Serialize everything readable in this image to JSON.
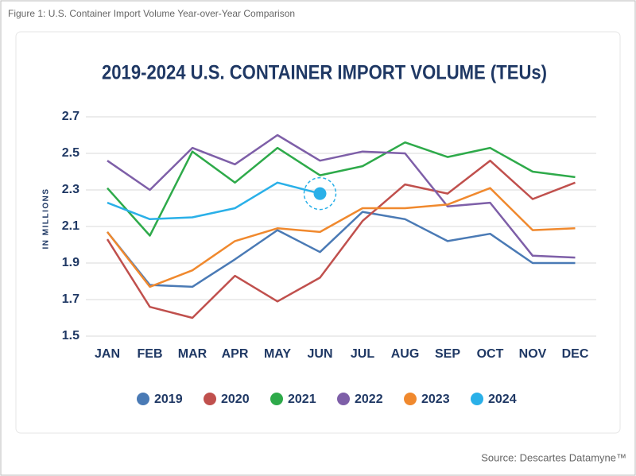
{
  "chart_data": {
    "type": "line",
    "caption": "Figure 1: U.S. Container Import Volume Year-over-Year Comparison",
    "title": "2019-2024 U.S. CONTAINER IMPORT VOLUME (TEUs)",
    "y_label": "IN MILLIONS",
    "source": "Source: Descartes Datamyne™",
    "categories": [
      "JAN",
      "FEB",
      "MAR",
      "APR",
      "MAY",
      "JUN",
      "JUL",
      "AUG",
      "SEP",
      "OCT",
      "NOV",
      "DEC"
    ],
    "series": [
      {
        "name": "2019",
        "color": "#4a7ab5",
        "values": [
          2.07,
          1.78,
          1.77,
          1.92,
          2.08,
          1.96,
          2.18,
          2.14,
          2.02,
          2.06,
          1.9,
          1.9
        ]
      },
      {
        "name": "2020",
        "color": "#c0504d",
        "values": [
          2.03,
          1.66,
          1.6,
          1.83,
          1.69,
          1.82,
          2.13,
          2.33,
          2.28,
          2.46,
          2.25,
          2.34
        ]
      },
      {
        "name": "2021",
        "color": "#2eaa4a",
        "values": [
          2.31,
          2.05,
          2.51,
          2.34,
          2.53,
          2.38,
          2.43,
          2.56,
          2.48,
          2.53,
          2.4,
          2.37
        ]
      },
      {
        "name": "2022",
        "color": "#7e5fa8",
        "values": [
          2.46,
          2.3,
          2.53,
          2.44,
          2.6,
          2.46,
          2.51,
          2.5,
          2.21,
          2.23,
          1.94,
          1.93
        ]
      },
      {
        "name": "2023",
        "color": "#f0892e",
        "values": [
          2.07,
          1.77,
          1.86,
          2.02,
          2.09,
          2.07,
          2.2,
          2.2,
          2.22,
          2.31,
          2.08,
          2.09
        ]
      },
      {
        "name": "2024",
        "color": "#2ab0e8",
        "values": [
          2.23,
          2.14,
          2.15,
          2.2,
          2.34,
          2.28,
          null,
          null,
          null,
          null,
          null,
          null
        ]
      }
    ],
    "ylim": [
      1.5,
      2.7
    ],
    "yticks": [
      1.5,
      1.7,
      1.9,
      2.1,
      2.3,
      2.5,
      2.7
    ],
    "grid": true,
    "legend": "bottom"
  }
}
